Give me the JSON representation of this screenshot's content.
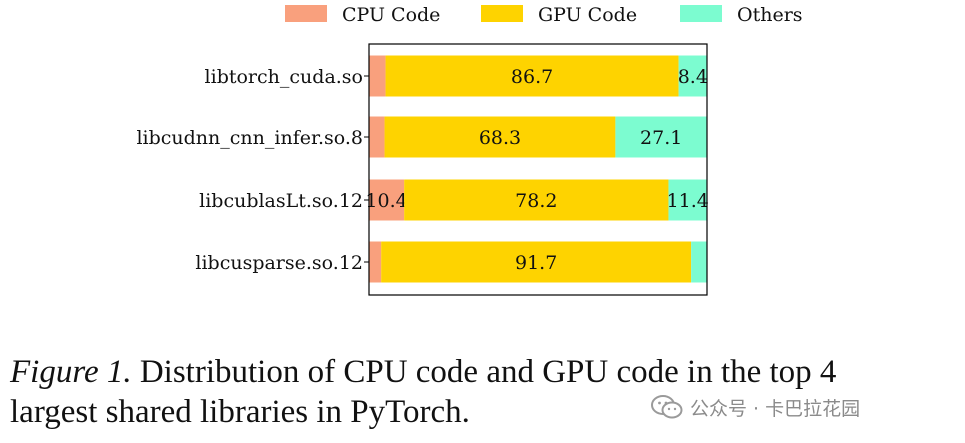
{
  "chart_data": {
    "type": "bar",
    "orientation": "horizontal",
    "stacked": true,
    "categories": [
      "libtorch_cuda.so",
      "libcudnn_cnn_infer.so.8",
      "libcublasLt.so.12",
      "libcusparse.so.12"
    ],
    "series": [
      {
        "name": "CPU Code",
        "color": "#f9a07d",
        "values": [
          4.9,
          4.6,
          10.4,
          3.6
        ],
        "labels": [
          "",
          "",
          "10.4",
          ""
        ]
      },
      {
        "name": "GPU Code",
        "color": "#fed300",
        "values": [
          86.7,
          68.3,
          78.2,
          91.7
        ],
        "labels": [
          "86.7",
          "68.3",
          "78.2",
          "91.7"
        ]
      },
      {
        "name": "Others",
        "color": "#7cfcd0",
        "values": [
          8.4,
          27.1,
          11.4,
          4.7
        ],
        "labels": [
          "8.4",
          "27.1",
          "11.4",
          ""
        ]
      }
    ],
    "xlim": [
      0,
      100
    ],
    "legend_position": "top",
    "grid": false
  },
  "caption": {
    "label": "Figure 1.",
    "line1_rest": " Distribution of CPU code and GPU code in the top 4",
    "line2": "largest shared libraries in PyTorch."
  },
  "watermark": {
    "text": "公众号 · 卡巴拉花园",
    "icon": "wechat-icon"
  }
}
